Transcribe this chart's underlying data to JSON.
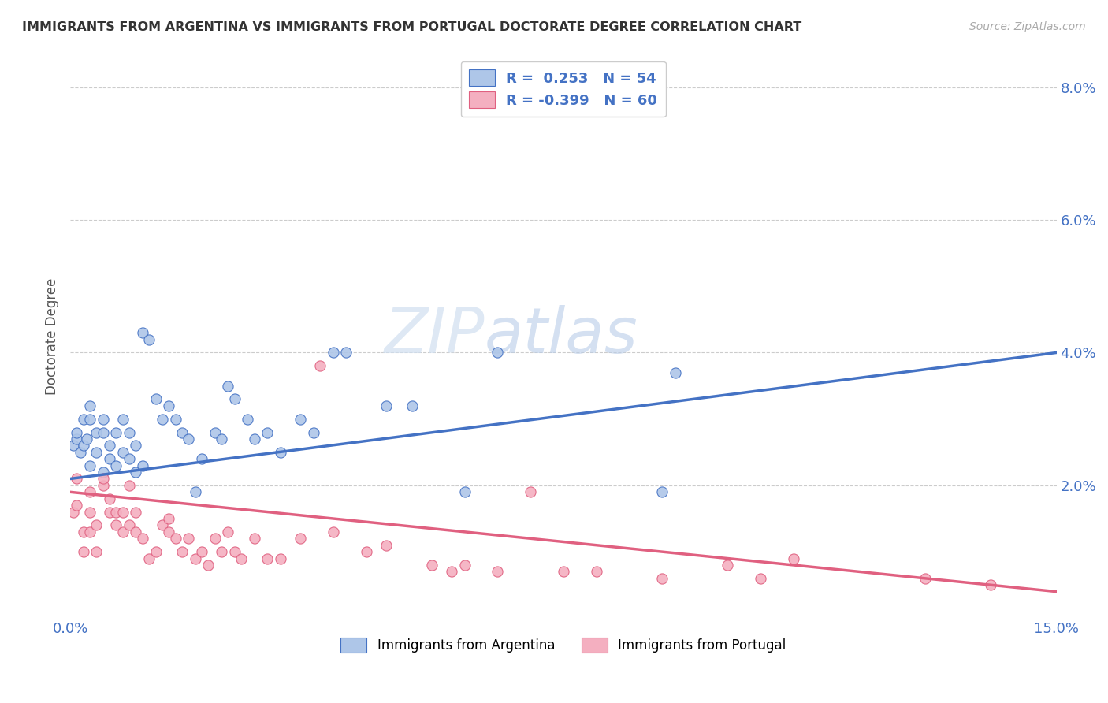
{
  "title": "IMMIGRANTS FROM ARGENTINA VS IMMIGRANTS FROM PORTUGAL DOCTORATE DEGREE CORRELATION CHART",
  "source": "Source: ZipAtlas.com",
  "ylabel": "Doctorate Degree",
  "xlim": [
    0.0,
    0.15
  ],
  "ylim": [
    0.0,
    0.085
  ],
  "xticks": [
    0.0,
    0.05,
    0.1,
    0.15
  ],
  "xticklabels": [
    "0.0%",
    "",
    "",
    "15.0%"
  ],
  "yticks_right": [
    0.02,
    0.04,
    0.06,
    0.08
  ],
  "yticklabels_right": [
    "2.0%",
    "4.0%",
    "6.0%",
    "8.0%"
  ],
  "color_argentina": "#aec6e8",
  "color_portugal": "#f4afc0",
  "line_color_argentina": "#4472c4",
  "line_color_portugal": "#e06080",
  "watermark_zip": "ZIP",
  "watermark_atlas": "atlas",
  "argentina_x": [
    0.0005,
    0.001,
    0.001,
    0.0015,
    0.002,
    0.002,
    0.0025,
    0.003,
    0.003,
    0.003,
    0.004,
    0.004,
    0.005,
    0.005,
    0.005,
    0.006,
    0.006,
    0.007,
    0.007,
    0.008,
    0.008,
    0.009,
    0.009,
    0.01,
    0.01,
    0.011,
    0.011,
    0.012,
    0.013,
    0.014,
    0.015,
    0.016,
    0.017,
    0.018,
    0.019,
    0.02,
    0.022,
    0.023,
    0.024,
    0.025,
    0.027,
    0.028,
    0.03,
    0.032,
    0.035,
    0.037,
    0.04,
    0.042,
    0.048,
    0.052,
    0.06,
    0.065,
    0.09,
    0.092
  ],
  "argentina_y": [
    0.026,
    0.027,
    0.028,
    0.025,
    0.026,
    0.03,
    0.027,
    0.023,
    0.03,
    0.032,
    0.025,
    0.028,
    0.022,
    0.028,
    0.03,
    0.024,
    0.026,
    0.023,
    0.028,
    0.025,
    0.03,
    0.024,
    0.028,
    0.022,
    0.026,
    0.023,
    0.043,
    0.042,
    0.033,
    0.03,
    0.032,
    0.03,
    0.028,
    0.027,
    0.019,
    0.024,
    0.028,
    0.027,
    0.035,
    0.033,
    0.03,
    0.027,
    0.028,
    0.025,
    0.03,
    0.028,
    0.04,
    0.04,
    0.032,
    0.032,
    0.019,
    0.04,
    0.019,
    0.037
  ],
  "portugal_x": [
    0.0005,
    0.001,
    0.001,
    0.002,
    0.002,
    0.003,
    0.003,
    0.003,
    0.004,
    0.004,
    0.005,
    0.005,
    0.006,
    0.006,
    0.007,
    0.007,
    0.008,
    0.008,
    0.009,
    0.009,
    0.01,
    0.01,
    0.011,
    0.012,
    0.013,
    0.014,
    0.015,
    0.015,
    0.016,
    0.017,
    0.018,
    0.019,
    0.02,
    0.021,
    0.022,
    0.023,
    0.024,
    0.025,
    0.026,
    0.028,
    0.03,
    0.032,
    0.035,
    0.038,
    0.04,
    0.045,
    0.048,
    0.055,
    0.058,
    0.06,
    0.065,
    0.07,
    0.075,
    0.08,
    0.09,
    0.1,
    0.105,
    0.11,
    0.13,
    0.14
  ],
  "portugal_y": [
    0.016,
    0.017,
    0.021,
    0.01,
    0.013,
    0.019,
    0.013,
    0.016,
    0.01,
    0.014,
    0.02,
    0.021,
    0.016,
    0.018,
    0.014,
    0.016,
    0.013,
    0.016,
    0.014,
    0.02,
    0.013,
    0.016,
    0.012,
    0.009,
    0.01,
    0.014,
    0.015,
    0.013,
    0.012,
    0.01,
    0.012,
    0.009,
    0.01,
    0.008,
    0.012,
    0.01,
    0.013,
    0.01,
    0.009,
    0.012,
    0.009,
    0.009,
    0.012,
    0.038,
    0.013,
    0.01,
    0.011,
    0.008,
    0.007,
    0.008,
    0.007,
    0.019,
    0.007,
    0.007,
    0.006,
    0.008,
    0.006,
    0.009,
    0.006,
    0.005
  ],
  "arg_line_x": [
    0.0,
    0.15
  ],
  "arg_line_y": [
    0.021,
    0.04
  ],
  "por_line_x": [
    0.0,
    0.15
  ],
  "por_line_y": [
    0.019,
    0.004
  ]
}
